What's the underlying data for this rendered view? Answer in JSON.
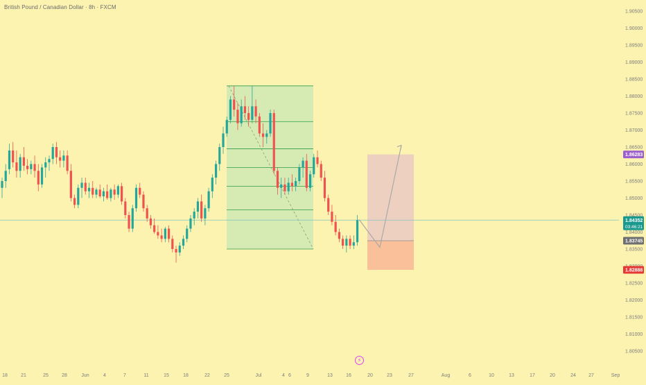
{
  "header": {
    "symbol_title": "British Pound / Canadian Dollar · 8h · FXCM"
  },
  "colors": {
    "background": "#fcf3b1",
    "bull": "#26a69a",
    "bear": "#ef5350",
    "range_fill": "#cfe9b4",
    "range_line": "#2e9b4a",
    "target_zone": "#eed0c0",
    "stop_zone": "#f9c09a",
    "price_line": "#7fc4bf",
    "projection": "#a9a9a9"
  },
  "icons": {
    "event": "lightning-bolt-icon"
  },
  "chart_data": {
    "type": "candlestick",
    "title": "British Pound / Canadian Dollar · 8h · FXCM",
    "ylim": [
      1.802,
      1.907
    ],
    "y_ticks": [
      "1.90500",
      "1.90000",
      "1.89500",
      "1.89000",
      "1.88500",
      "1.88000",
      "1.87500",
      "1.87000",
      "1.86500",
      "1.86000",
      "1.85500",
      "1.85000",
      "1.84500",
      "1.84000",
      "1.83500",
      "1.83000",
      "1.82500",
      "1.82000",
      "1.81500",
      "1.81000",
      "1.80500"
    ],
    "x_ticks": [
      "18",
      "21",
      "25",
      "28",
      "Jun",
      "4",
      "7",
      "11",
      "15",
      "18",
      "22",
      "25",
      "Jul",
      "4",
      "6",
      "9",
      "13",
      "16",
      "20",
      "23",
      "27",
      "Aug",
      "6",
      "10",
      "13",
      "17",
      "20",
      "24",
      "27",
      "Sep"
    ],
    "candles": [
      [
        1.853,
        1.856,
        1.85,
        1.855
      ],
      [
        1.855,
        1.86,
        1.853,
        1.858
      ],
      [
        1.8585,
        1.866,
        1.857,
        1.864
      ],
      [
        1.864,
        1.8665,
        1.859,
        1.8605
      ],
      [
        1.8605,
        1.864,
        1.856,
        1.858
      ],
      [
        1.858,
        1.863,
        1.856,
        1.862
      ],
      [
        1.862,
        1.865,
        1.858,
        1.8595
      ],
      [
        1.8595,
        1.8615,
        1.857,
        1.8585
      ],
      [
        1.8585,
        1.861,
        1.857,
        1.86
      ],
      [
        1.86,
        1.8625,
        1.856,
        1.858
      ],
      [
        1.858,
        1.86,
        1.852,
        1.854
      ],
      [
        1.854,
        1.86,
        1.853,
        1.859
      ],
      [
        1.859,
        1.862,
        1.856,
        1.8605
      ],
      [
        1.8605,
        1.8625,
        1.858,
        1.8615
      ],
      [
        1.8615,
        1.866,
        1.86,
        1.865
      ],
      [
        1.865,
        1.8665,
        1.86,
        1.862
      ],
      [
        1.862,
        1.864,
        1.859,
        1.861
      ],
      [
        1.861,
        1.864,
        1.859,
        1.8625
      ],
      [
        1.8625,
        1.864,
        1.857,
        1.858
      ],
      [
        1.858,
        1.86,
        1.849,
        1.85
      ],
      [
        1.85,
        1.851,
        1.847,
        1.848
      ],
      [
        1.848,
        1.854,
        1.847,
        1.853
      ],
      [
        1.853,
        1.856,
        1.85,
        1.8545
      ],
      [
        1.8545,
        1.856,
        1.851,
        1.852
      ],
      [
        1.852,
        1.8545,
        1.85,
        1.853
      ],
      [
        1.853,
        1.855,
        1.85,
        1.851
      ],
      [
        1.851,
        1.853,
        1.85,
        1.8525
      ],
      [
        1.8525,
        1.854,
        1.85,
        1.8505
      ],
      [
        1.8505,
        1.853,
        1.849,
        1.852
      ],
      [
        1.852,
        1.854,
        1.8495,
        1.85
      ],
      [
        1.85,
        1.853,
        1.849,
        1.8525
      ],
      [
        1.8525,
        1.854,
        1.8495,
        1.851
      ],
      [
        1.851,
        1.854,
        1.85,
        1.8535
      ],
      [
        1.8535,
        1.8545,
        1.848,
        1.849
      ],
      [
        1.849,
        1.85,
        1.844,
        1.845
      ],
      [
        1.845,
        1.846,
        1.84,
        1.841
      ],
      [
        1.841,
        1.848,
        1.84,
        1.847
      ],
      [
        1.847,
        1.854,
        1.846,
        1.853
      ],
      [
        1.853,
        1.8545,
        1.85,
        1.851
      ],
      [
        1.851,
        1.852,
        1.846,
        1.847
      ],
      [
        1.847,
        1.848,
        1.843,
        1.844
      ],
      [
        1.844,
        1.845,
        1.841,
        1.842
      ],
      [
        1.842,
        1.844,
        1.8395,
        1.84
      ],
      [
        1.84,
        1.842,
        1.838,
        1.839
      ],
      [
        1.839,
        1.841,
        1.837,
        1.838
      ],
      [
        1.838,
        1.8415,
        1.837,
        1.841
      ],
      [
        1.841,
        1.842,
        1.837,
        1.838
      ],
      [
        1.838,
        1.839,
        1.834,
        1.835
      ],
      [
        1.835,
        1.836,
        1.831,
        1.834
      ],
      [
        1.834,
        1.837,
        1.833,
        1.836
      ],
      [
        1.836,
        1.839,
        1.835,
        1.838
      ],
      [
        1.838,
        1.842,
        1.837,
        1.841
      ],
      [
        1.841,
        1.845,
        1.84,
        1.844
      ],
      [
        1.844,
        1.847,
        1.842,
        1.846
      ],
      [
        1.846,
        1.85,
        1.844,
        1.849
      ],
      [
        1.849,
        1.851,
        1.843,
        1.844
      ],
      [
        1.844,
        1.848,
        1.842,
        1.847
      ],
      [
        1.847,
        1.853,
        1.846,
        1.852
      ],
      [
        1.852,
        1.857,
        1.85,
        1.856
      ],
      [
        1.856,
        1.861,
        1.854,
        1.86
      ],
      [
        1.86,
        1.866,
        1.858,
        1.865
      ],
      [
        1.865,
        1.871,
        1.863,
        1.869
      ],
      [
        1.869,
        1.874,
        1.868,
        1.873
      ],
      [
        1.873,
        1.88,
        1.872,
        1.879
      ],
      [
        1.879,
        1.883,
        1.874,
        1.876
      ],
      [
        1.876,
        1.878,
        1.87,
        1.872
      ],
      [
        1.872,
        1.879,
        1.871,
        1.877
      ],
      [
        1.877,
        1.88,
        1.873,
        1.875
      ],
      [
        1.875,
        1.877,
        1.871,
        1.873
      ],
      [
        1.873,
        1.883,
        1.872,
        1.877
      ],
      [
        1.877,
        1.879,
        1.872,
        1.874
      ],
      [
        1.874,
        1.875,
        1.868,
        1.869
      ],
      [
        1.869,
        1.872,
        1.865,
        1.868
      ],
      [
        1.868,
        1.87,
        1.866,
        1.869
      ],
      [
        1.869,
        1.876,
        1.868,
        1.875
      ],
      [
        1.875,
        1.876,
        1.857,
        1.858
      ],
      [
        1.858,
        1.859,
        1.851,
        1.853
      ],
      [
        1.853,
        1.856,
        1.85,
        1.854
      ],
      [
        1.854,
        1.856,
        1.851,
        1.852
      ],
      [
        1.852,
        1.856,
        1.851,
        1.8545
      ],
      [
        1.8545,
        1.857,
        1.852,
        1.8535
      ],
      [
        1.8535,
        1.856,
        1.852,
        1.855
      ],
      [
        1.855,
        1.86,
        1.854,
        1.859
      ],
      [
        1.859,
        1.862,
        1.856,
        1.861
      ],
      [
        1.861,
        1.863,
        1.852,
        1.853
      ],
      [
        1.853,
        1.858,
        1.852,
        1.857
      ],
      [
        1.857,
        1.863,
        1.856,
        1.862
      ],
      [
        1.862,
        1.864,
        1.859,
        1.86
      ],
      [
        1.86,
        1.861,
        1.855,
        1.856
      ],
      [
        1.856,
        1.858,
        1.849,
        1.85
      ],
      [
        1.85,
        1.851,
        1.845,
        1.846
      ],
      [
        1.846,
        1.848,
        1.842,
        1.843
      ],
      [
        1.843,
        1.845,
        1.839,
        1.84
      ],
      [
        1.84,
        1.841,
        1.837,
        1.838
      ],
      [
        1.838,
        1.839,
        1.835,
        1.836
      ],
      [
        1.836,
        1.839,
        1.834,
        1.838
      ],
      [
        1.838,
        1.839,
        1.835,
        1.836
      ],
      [
        1.836,
        1.839,
        1.835,
        1.837
      ],
      [
        1.837,
        1.845,
        1.836,
        1.8435
      ]
    ],
    "annotations": {
      "range_box": {
        "top": 1.883,
        "bottom": 1.835,
        "levels": [
          1.883,
          1.8725,
          1.8645,
          1.859,
          1.8535,
          1.8465,
          1.835
        ]
      },
      "long_position": {
        "entry": 1.83745,
        "target": 1.86283,
        "stop": 1.82888
      },
      "projection_path": [
        [
          1.8437,
          1.8437
        ],
        [
          1.8355,
          1.8355
        ],
        [
          1.8655,
          1.8655
        ]
      ],
      "current_price_line": 1.84352
    },
    "price_tags": [
      {
        "label": "1.86283",
        "value": 1.86283,
        "color": "#9c5fd0"
      },
      {
        "label": "1.84352",
        "sub": "03:46:21",
        "value": 1.84352,
        "color": "#1a9a8e"
      },
      {
        "label": "1.83745",
        "value": 1.83745,
        "color": "#6f6f6f"
      },
      {
        "label": "1.82888",
        "value": 1.82888,
        "color": "#e53935"
      }
    ],
    "grid": false,
    "legend": "none"
  }
}
